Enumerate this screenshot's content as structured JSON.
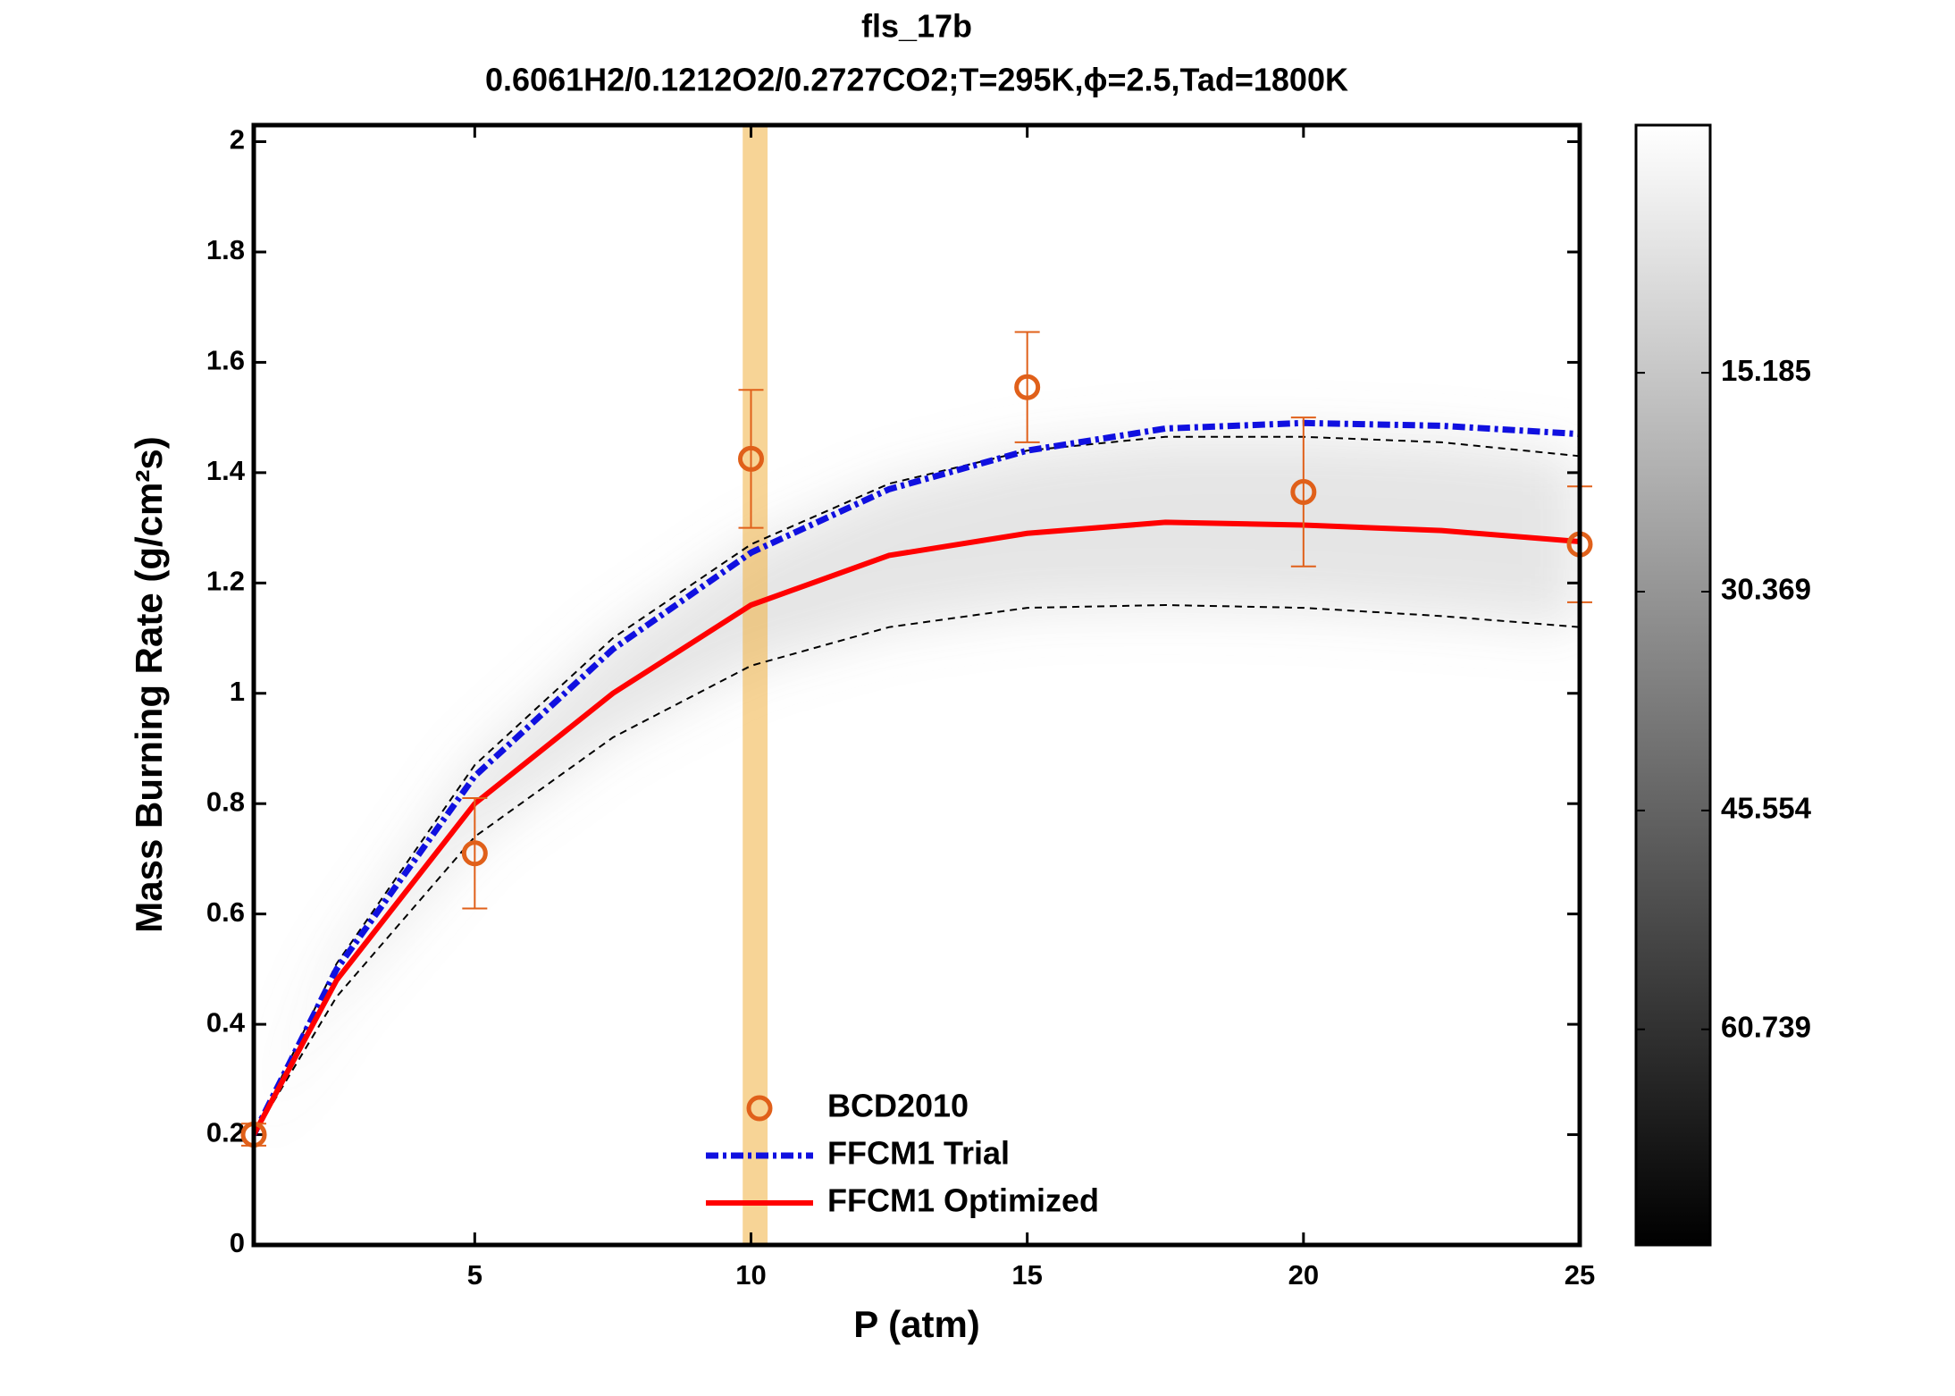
{
  "chart_data": {
    "type": "line",
    "title": "fls_17b",
    "subtitle": "0.6061H2/0.1212O2/0.2727CO2;T=295K,ϕ=2.5,Tad=1800K",
    "x_label": "P (atm)",
    "y_label": "Mass Burning Rate (g/cm²s)",
    "xlim": [
      1,
      25
    ],
    "xticks": [
      5,
      10,
      15,
      20,
      25
    ],
    "ylim": [
      0,
      2.03
    ],
    "yticks": [
      0,
      0.2,
      0.4,
      0.6,
      0.8,
      1,
      1.2,
      1.4,
      1.6,
      1.8,
      2
    ],
    "legend": "lower center",
    "x": [
      1,
      2.5,
      5,
      7.5,
      10,
      12.5,
      15,
      17.5,
      20,
      22.5,
      25
    ],
    "series": [
      {
        "name": "FFCM1 Trial",
        "color": "#1010e0",
        "values": [
          0.2,
          0.5,
          0.85,
          1.08,
          1.255,
          1.37,
          1.44,
          1.48,
          1.49,
          1.485,
          1.47
        ]
      },
      {
        "name": "FFCM1 Optimized",
        "color": "#ff0000",
        "values": [
          0.2,
          0.48,
          0.8,
          1.0,
          1.16,
          1.25,
          1.29,
          1.31,
          1.305,
          1.295,
          1.275
        ]
      }
    ],
    "bounds": [
      {
        "color": "#000000",
        "values": [
          0.2,
          0.51,
          0.87,
          1.1,
          1.27,
          1.38,
          1.44,
          1.465,
          1.465,
          1.455,
          1.43
        ]
      },
      {
        "color": "#000000",
        "values": [
          0.2,
          0.45,
          0.74,
          0.92,
          1.05,
          1.12,
          1.155,
          1.16,
          1.155,
          1.14,
          1.12
        ]
      }
    ],
    "experiment": {
      "name": "BCD2010",
      "color": "#e0601a",
      "x": [
        1,
        5,
        10,
        15,
        20,
        25
      ],
      "values": [
        0.2,
        0.71,
        1.425,
        1.555,
        1.365,
        1.27
      ],
      "errors": [
        0.02,
        0.1,
        0.125,
        0.1,
        0.135,
        0.105
      ]
    },
    "highlight_x": [
      9.85,
      10.3
    ],
    "highlight_color": "#f0b040",
    "colorbar": {
      "clim": [
        -2,
        75.7
      ],
      "ticks": [
        15.185,
        30.369,
        45.554,
        60.739
      ],
      "colormap": [
        "#ffffff",
        "#000000"
      ]
    }
  }
}
